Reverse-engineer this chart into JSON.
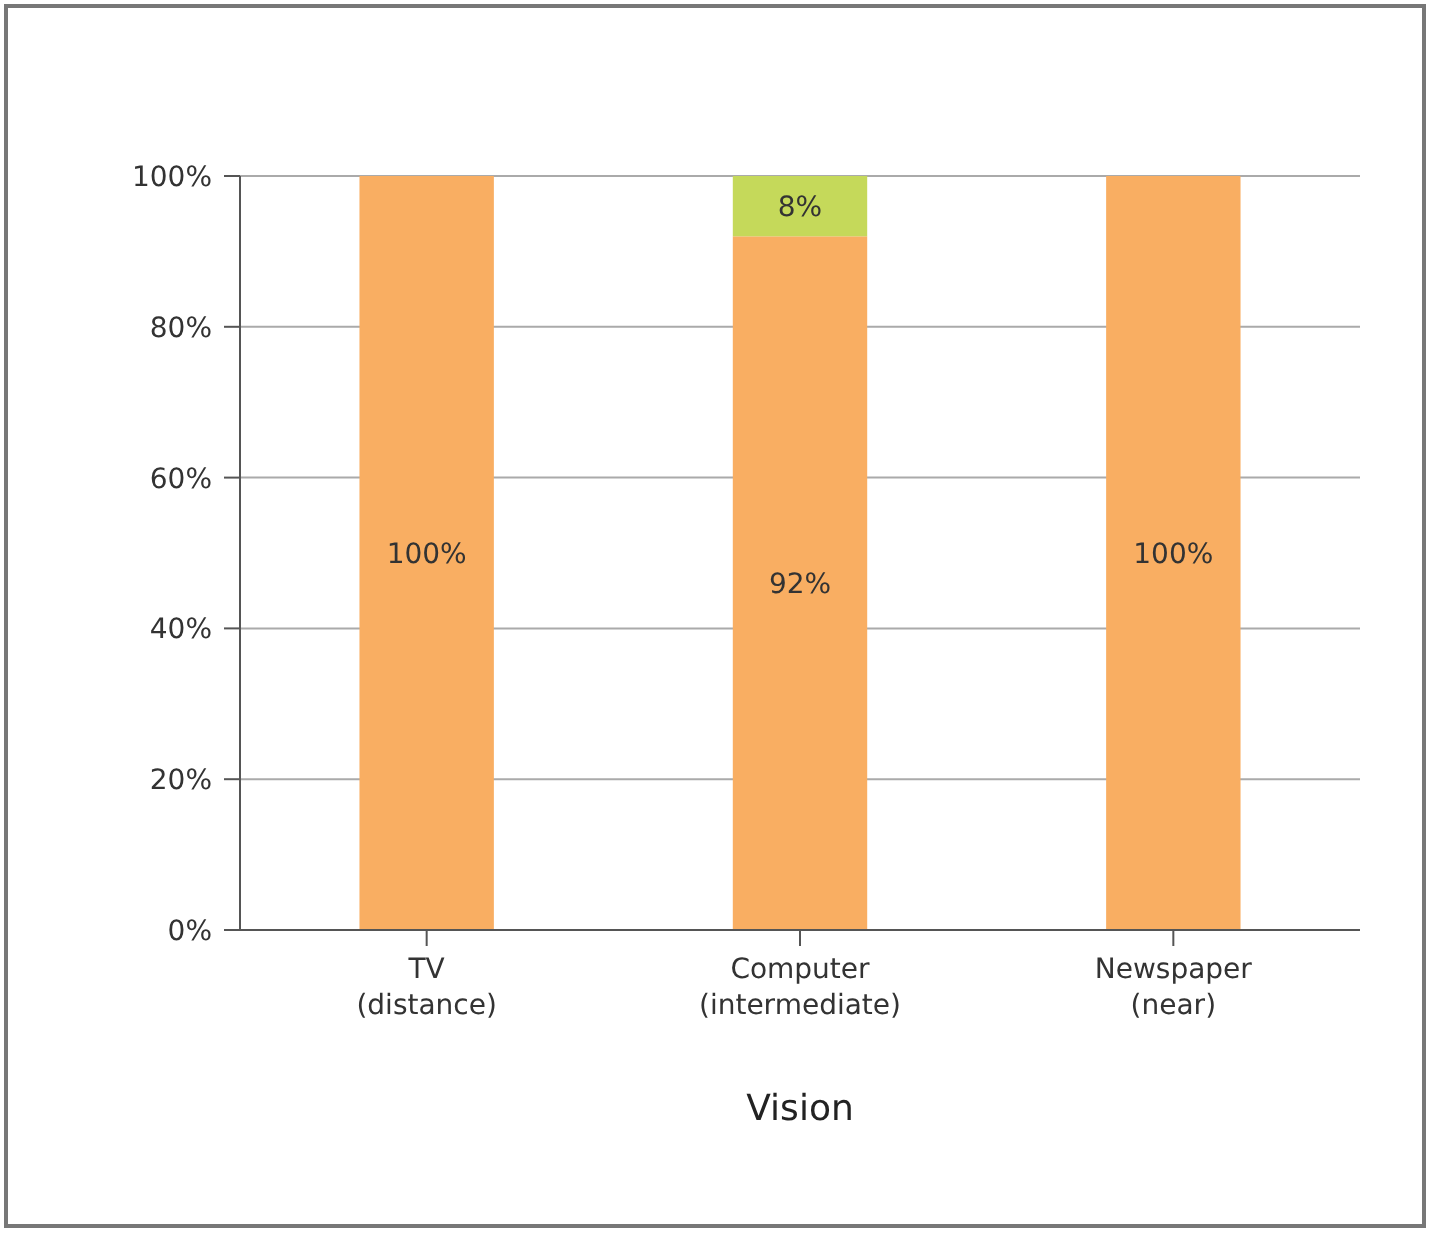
{
  "chart_data": {
    "type": "bar",
    "stacked": true,
    "xlabel": "Vision",
    "categories": [
      "TV\n(distance)",
      "Computer\n(intermediate)",
      "Newspaper\n(near)"
    ],
    "series": [
      {
        "color": "#f9ae62",
        "values": [
          100,
          92,
          100
        ],
        "value_labels": [
          "100%",
          "92%",
          "100%"
        ]
      },
      {
        "color": "#c5d95a",
        "values": [
          null,
          8,
          null
        ],
        "value_labels": [
          null,
          "8%",
          null
        ]
      }
    ],
    "ylim": [
      0,
      100
    ],
    "yticks": [
      {
        "value": 0,
        "label": "0%"
      },
      {
        "value": 20,
        "label": "20%"
      },
      {
        "value": 40,
        "label": "40%"
      },
      {
        "value": 60,
        "label": "60%"
      },
      {
        "value": 80,
        "label": "80%"
      },
      {
        "value": 100,
        "label": "100%"
      }
    ],
    "grid": "y"
  }
}
